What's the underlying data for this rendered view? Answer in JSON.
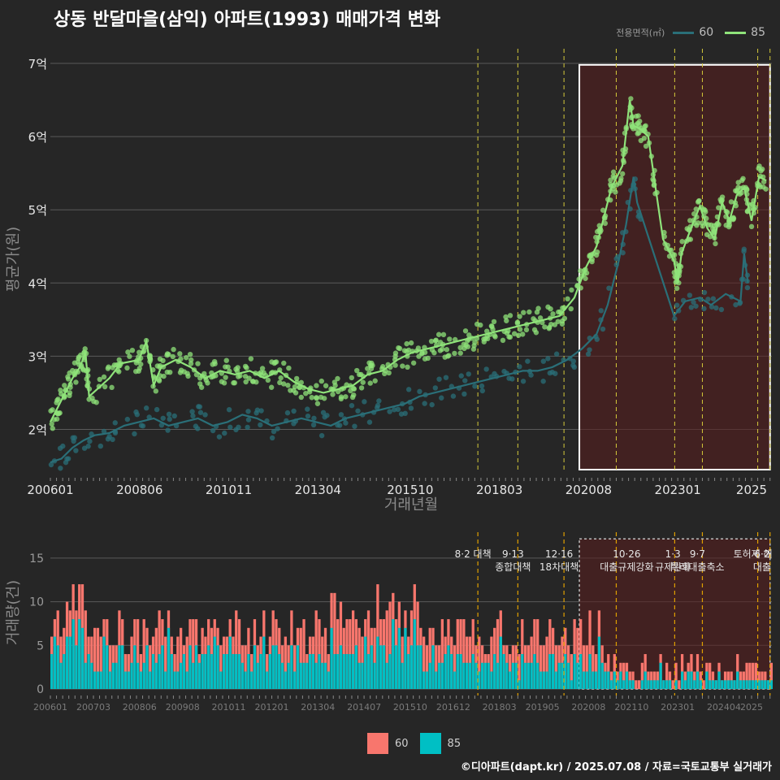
{
  "title": "상동 반달마을(삼익) 아파트(1993) 매매가격 변화",
  "legend": {
    "title": "전용면적(㎡)",
    "items": [
      {
        "label": "60",
        "color": "#2a6f78"
      },
      {
        "label": "85",
        "color": "#8fe37a"
      }
    ]
  },
  "bottom_legend": [
    {
      "label": "60",
      "color": "#f8766d"
    },
    {
      "label": "85",
      "color": "#00bfc4"
    }
  ],
  "credit": "©디아파트(dapt.kr) / 2025.07.08 / 자료=국토교통부 실거래가",
  "chart_data": [
    {
      "type": "line",
      "xlabel": "거래년월",
      "ylabel": "평균가(원)",
      "x_ticks": [
        "200601",
        "200806",
        "201011",
        "201304",
        "201510",
        "201803",
        "202008",
        "202301",
        "2025"
      ],
      "y_ticks": [
        "2억",
        "3억",
        "4억",
        "5억",
        "6억",
        "7억"
      ],
      "ylim": [
        1.45,
        7.2
      ],
      "highlight_box": {
        "x_start": "2020.05",
        "x_end": "2025.07",
        "y_start": 1.45,
        "y_end": 6.98
      },
      "policy_lines": [
        "2017.08",
        "2018.09",
        "2019.12",
        "2021.05",
        "2022.12",
        "2023.09",
        "2025.03",
        "2025.07"
      ],
      "series": [
        {
          "name": "60",
          "color": "#2a6f78",
          "points": [
            [
              2006.0,
              1.55
            ],
            [
              2006.3,
              1.6
            ],
            [
              2006.6,
              1.75
            ],
            [
              2006.9,
              1.85
            ],
            [
              2007.2,
              1.92
            ],
            [
              2007.6,
              1.95
            ],
            [
              2008.0,
              2.05
            ],
            [
              2008.4,
              2.1
            ],
            [
              2008.8,
              2.15
            ],
            [
              2009.2,
              2.05
            ],
            [
              2009.6,
              2.1
            ],
            [
              2010.0,
              2.15
            ],
            [
              2010.4,
              2.05
            ],
            [
              2010.8,
              2.1
            ],
            [
              2011.2,
              2.2
            ],
            [
              2011.6,
              2.15
            ],
            [
              2012.0,
              2.05
            ],
            [
              2012.4,
              2.1
            ],
            [
              2012.8,
              2.15
            ],
            [
              2013.2,
              2.1
            ],
            [
              2013.6,
              2.05
            ],
            [
              2014.0,
              2.15
            ],
            [
              2014.4,
              2.2
            ],
            [
              2014.8,
              2.25
            ],
            [
              2015.2,
              2.3
            ],
            [
              2015.6,
              2.35
            ],
            [
              2016.0,
              2.45
            ],
            [
              2016.4,
              2.5
            ],
            [
              2016.8,
              2.55
            ],
            [
              2017.2,
              2.6
            ],
            [
              2017.6,
              2.65
            ],
            [
              2018.0,
              2.7
            ],
            [
              2018.4,
              2.75
            ],
            [
              2018.8,
              2.8
            ],
            [
              2019.2,
              2.8
            ],
            [
              2019.6,
              2.85
            ],
            [
              2020.0,
              2.95
            ],
            [
              2020.4,
              3.1
            ],
            [
              2020.8,
              3.3
            ],
            [
              2021.1,
              3.7
            ],
            [
              2021.4,
              4.3
            ],
            [
              2021.6,
              4.8
            ],
            [
              2021.8,
              5.45
            ],
            [
              2021.9,
              5.1
            ],
            [
              2022.9,
              3.55
            ],
            [
              2023.2,
              3.75
            ],
            [
              2023.6,
              3.8
            ],
            [
              2023.9,
              3.7
            ],
            [
              2024.3,
              3.85
            ],
            [
              2024.7,
              3.75
            ],
            [
              2024.8,
              4.4
            ],
            [
              2024.9,
              4.0
            ]
          ]
        },
        {
          "name": "85",
          "color": "#8fe37a",
          "points": [
            [
              2006.0,
              2.1
            ],
            [
              2006.2,
              2.3
            ],
            [
              2006.4,
              2.5
            ],
            [
              2006.6,
              2.7
            ],
            [
              2006.8,
              2.85
            ],
            [
              2006.95,
              3.05
            ],
            [
              2007.05,
              2.45
            ],
            [
              2007.6,
              2.7
            ],
            [
              2007.9,
              2.9
            ],
            [
              2008.4,
              2.95
            ],
            [
              2008.6,
              3.2
            ],
            [
              2008.8,
              2.6
            ],
            [
              2009.0,
              2.85
            ],
            [
              2009.4,
              2.95
            ],
            [
              2009.8,
              2.85
            ],
            [
              2010.2,
              2.7
            ],
            [
              2010.6,
              2.8
            ],
            [
              2011.0,
              2.75
            ],
            [
              2011.4,
              2.8
            ],
            [
              2011.8,
              2.7
            ],
            [
              2012.2,
              2.8
            ],
            [
              2012.6,
              2.65
            ],
            [
              2013.0,
              2.55
            ],
            [
              2013.4,
              2.5
            ],
            [
              2013.8,
              2.55
            ],
            [
              2014.2,
              2.6
            ],
            [
              2014.6,
              2.75
            ],
            [
              2015.0,
              2.8
            ],
            [
              2015.4,
              2.95
            ],
            [
              2015.8,
              3.05
            ],
            [
              2016.2,
              3.1
            ],
            [
              2016.6,
              3.15
            ],
            [
              2017.0,
              3.2
            ],
            [
              2017.4,
              3.25
            ],
            [
              2017.8,
              3.3
            ],
            [
              2018.2,
              3.35
            ],
            [
              2018.6,
              3.4
            ],
            [
              2019.0,
              3.45
            ],
            [
              2019.4,
              3.5
            ],
            [
              2019.8,
              3.55
            ],
            [
              2020.2,
              3.8
            ],
            [
              2020.5,
              4.2
            ],
            [
              2020.8,
              4.5
            ],
            [
              2021.0,
              4.9
            ],
            [
              2021.2,
              5.3
            ],
            [
              2021.5,
              5.6
            ],
            [
              2021.7,
              6.5
            ],
            [
              2021.8,
              6.15
            ],
            [
              2022.0,
              6.1
            ],
            [
              2022.2,
              6.0
            ],
            [
              2022.6,
              4.6
            ],
            [
              2022.9,
              4.3
            ],
            [
              2023.0,
              4.0
            ],
            [
              2023.1,
              4.4
            ],
            [
              2023.4,
              4.8
            ],
            [
              2023.6,
              5.05
            ],
            [
              2023.8,
              4.75
            ],
            [
              2024.0,
              4.6
            ],
            [
              2024.2,
              5.1
            ],
            [
              2024.4,
              4.85
            ],
            [
              2024.6,
              5.2
            ],
            [
              2024.8,
              5.3
            ],
            [
              2025.0,
              4.85
            ],
            [
              2025.2,
              5.45
            ],
            [
              2025.4,
              5.4
            ]
          ]
        }
      ]
    },
    {
      "type": "bar",
      "xlabel": "",
      "ylabel": "거래량(건)",
      "x_ticks": [
        "200601",
        "200703",
        "200806",
        "200908",
        "201011",
        "201201",
        "201304",
        "201407",
        "201510",
        "201612",
        "201803",
        "201905",
        "202008",
        "202110",
        "202301",
        "202404",
        "2025"
      ],
      "y_ticks": [
        "0",
        "5",
        "10",
        "15"
      ],
      "ylim": [
        0,
        17.5
      ],
      "annotations": [
        {
          "label": "8·2 대책",
          "x": "2017.08"
        },
        {
          "label": "9·13",
          "x": "2018.09"
        },
        {
          "label": "종합대책",
          "x": "2018.09"
        },
        {
          "label": "12·16",
          "x": "2019.12"
        },
        {
          "label": "18차대책",
          "x": "2019.12"
        },
        {
          "label": "10·26",
          "x": "2021.10"
        },
        {
          "label": "대출규제강화",
          "x": "2021.10"
        },
        {
          "label": "1·3",
          "x": "2023.01"
        },
        {
          "label": "규제완화",
          "x": "2023.01"
        },
        {
          "label": "9·7",
          "x": "2023.09"
        },
        {
          "label": "특례대출축소",
          "x": "2023.09"
        },
        {
          "label": "토허제 해",
          "x": "2025.03"
        },
        {
          "label": "6·2",
          "x": "2025.06"
        },
        {
          "label": "대출",
          "x": "2025.06"
        }
      ],
      "series": [
        {
          "name": "60",
          "color": "#f8766d"
        },
        {
          "name": "85",
          "color": "#00bfc4"
        }
      ]
    }
  ]
}
